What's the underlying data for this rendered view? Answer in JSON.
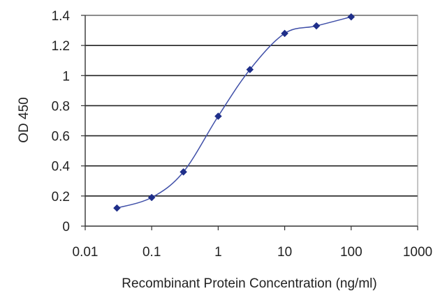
{
  "chart_data": {
    "type": "line",
    "title": "",
    "xlabel": "Recombinant Protein Concentration (ng/ml)",
    "ylabel": "OD 450",
    "xscale": "log",
    "xlim": [
      0.01,
      1000
    ],
    "ylim": [
      0,
      1.4
    ],
    "x_ticks": [
      "0.01",
      "0.1",
      "1",
      "10",
      "100",
      "1000"
    ],
    "y_ticks": [
      "0",
      "0.2",
      "0.4",
      "0.6",
      "0.8",
      "1",
      "1.2",
      "1.4"
    ],
    "grid": "horizontal",
    "legend": "none",
    "series": [
      {
        "x": [
          0.03,
          0.1,
          0.3,
          1,
          3,
          10,
          30,
          100
        ],
        "y": [
          0.12,
          0.19,
          0.36,
          0.73,
          1.04,
          1.28,
          1.33,
          1.39
        ]
      }
    ],
    "colors": {
      "line": "#3f4fa8",
      "marker": "#1f2f8a",
      "grid": "#222222",
      "axis": "#333333"
    }
  }
}
